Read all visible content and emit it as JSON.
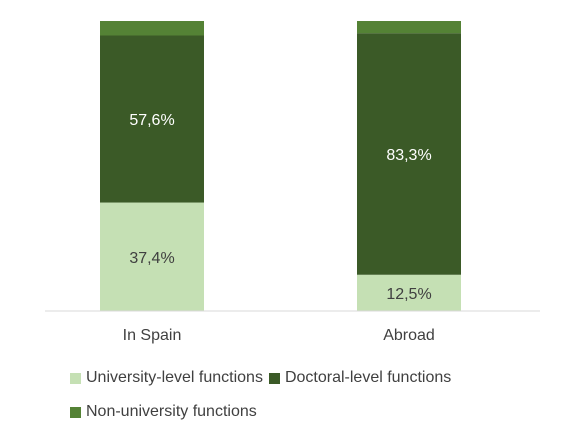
{
  "chart_data": {
    "type": "bar",
    "stacked": true,
    "categories": [
      "In Spain",
      "Abroad"
    ],
    "series": [
      {
        "name": "University-level functions",
        "values": [
          37.4,
          12.5
        ],
        "labels": [
          "37,4%",
          "12,5%"
        ],
        "color": "#c5e0b4"
      },
      {
        "name": "Doctoral-level functions",
        "values": [
          57.6,
          83.3
        ],
        "labels": [
          "57,6%",
          "83,3%"
        ],
        "color": "#3b5a27"
      },
      {
        "name": "Non-university functions",
        "values": [
          5.0,
          4.2
        ],
        "labels": [
          "",
          ""
        ],
        "color": "#548235"
      }
    ],
    "ylim": [
      0,
      100
    ],
    "grid": false,
    "legend_position": "bottom"
  }
}
